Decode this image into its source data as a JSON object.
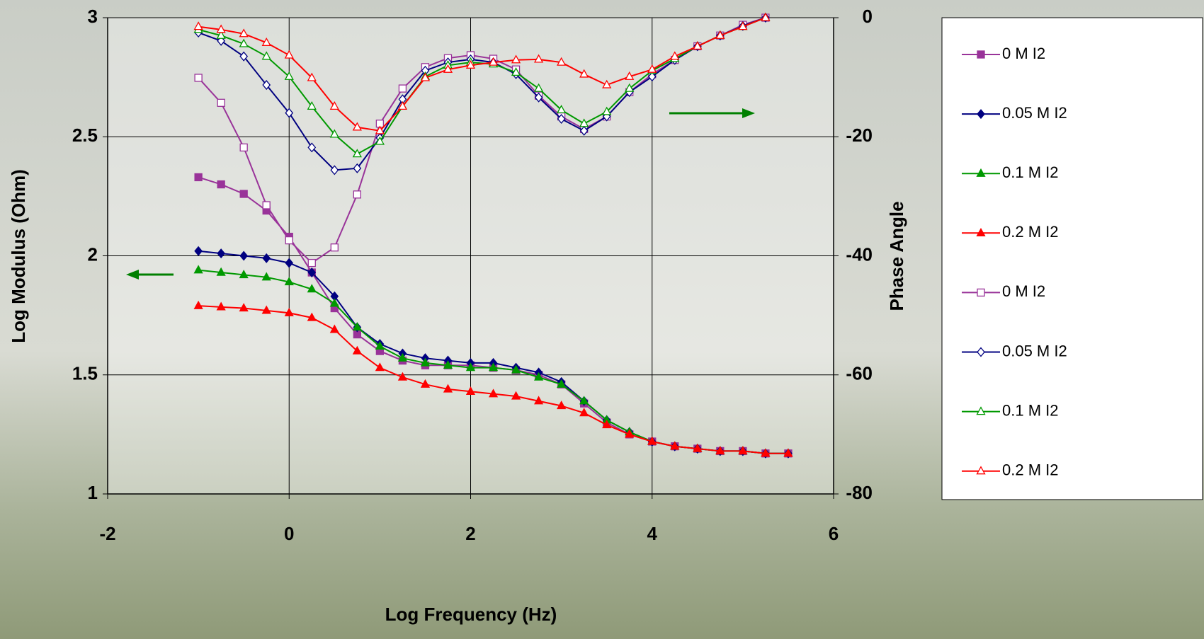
{
  "chart_data": {
    "type": "line",
    "x_label": "Log Frequency (Hz)",
    "y_label": "Log Modulus (Ohm)",
    "y2_label": "Phase Angle",
    "xlim": [
      -2,
      6
    ],
    "xticks": [
      -2,
      0,
      2,
      4,
      6
    ],
    "ylim": [
      1,
      3
    ],
    "yticks": [
      1,
      1.5,
      2,
      2.5,
      3
    ],
    "y2lim": [
      -80,
      0
    ],
    "y2ticks": [
      -80,
      -60,
      -40,
      -20,
      0
    ],
    "grid": true,
    "legend": "right",
    "x": [
      -1,
      -0.75,
      -0.5,
      -0.25,
      0,
      0.25,
      0.5,
      0.75,
      1,
      1.25,
      1.5,
      1.75,
      2,
      2.25,
      2.5,
      2.75,
      3,
      3.25,
      3.5,
      3.75,
      4,
      4.25,
      4.5,
      4.75,
      5,
      5.25,
      5.5
    ],
    "series": [
      {
        "name": "0 M I2",
        "color": "#993399",
        "marker": "square",
        "filled": true,
        "axis": "y",
        "values": [
          2.33,
          2.3,
          2.26,
          2.19,
          2.08,
          1.93,
          1.78,
          1.67,
          1.6,
          1.56,
          1.54,
          1.54,
          1.54,
          1.53,
          1.52,
          1.5,
          1.46,
          1.38,
          1.3,
          1.25,
          1.22,
          1.2,
          1.19,
          1.18,
          1.18,
          1.17,
          1.17
        ]
      },
      {
        "name": "0.05 M I2",
        "color": "#000080",
        "marker": "diamond",
        "filled": true,
        "axis": "y",
        "values": [
          2.02,
          2.01,
          2.0,
          1.99,
          1.97,
          1.93,
          1.83,
          1.7,
          1.63,
          1.59,
          1.57,
          1.56,
          1.55,
          1.55,
          1.53,
          1.51,
          1.47,
          1.39,
          1.31,
          1.26,
          1.22,
          1.2,
          1.19,
          1.18,
          1.18,
          1.17,
          1.17
        ]
      },
      {
        "name": "0.1 M I2",
        "color": "#009900",
        "marker": "triangle",
        "filled": true,
        "axis": "y",
        "values": [
          1.94,
          1.93,
          1.92,
          1.91,
          1.89,
          1.86,
          1.8,
          1.7,
          1.62,
          1.57,
          1.55,
          1.54,
          1.53,
          1.53,
          1.52,
          1.49,
          1.46,
          1.39,
          1.31,
          1.26,
          1.22,
          1.2,
          1.19,
          1.18,
          1.18,
          1.17,
          1.17
        ]
      },
      {
        "name": "0.2 M I2",
        "color": "#ff0000",
        "marker": "triangle",
        "filled": true,
        "axis": "y",
        "values": [
          1.79,
          1.785,
          1.78,
          1.77,
          1.76,
          1.74,
          1.69,
          1.6,
          1.53,
          1.49,
          1.46,
          1.44,
          1.43,
          1.42,
          1.41,
          1.39,
          1.37,
          1.34,
          1.29,
          1.25,
          1.22,
          1.2,
          1.19,
          1.18,
          1.18,
          1.17,
          1.17
        ]
      },
      {
        "name": "0 M I2",
        "color": "#993399",
        "marker": "square",
        "filled": false,
        "axis": "y2",
        "values": [
          -10.1,
          -14.3,
          -21.8,
          -31.5,
          -37.4,
          -41.2,
          -38.6,
          -29.7,
          -17.8,
          -11.9,
          -8.3,
          -6.8,
          -6.3,
          -6.9,
          -8.7,
          -13.1,
          -16.6,
          -18.7,
          -16.6,
          -12.5,
          -9.5,
          -7.1,
          -4.8,
          -3.0,
          -1.2,
          0,
          null
        ]
      },
      {
        "name": "0.05 M I2",
        "color": "#000080",
        "marker": "diamond",
        "filled": false,
        "axis": "y2",
        "values": [
          -2.5,
          -3.9,
          -6.5,
          -11.3,
          -16.0,
          -21.8,
          -25.6,
          -25.3,
          -20.2,
          -13.7,
          -8.9,
          -7.5,
          -7.0,
          -7.5,
          -9.5,
          -13.4,
          -17.0,
          -19.0,
          -16.6,
          -12.5,
          -9.9,
          -7.1,
          -4.8,
          -3.0,
          -1.4,
          0,
          null
        ]
      },
      {
        "name": "0.1 M I2",
        "color": "#009900",
        "marker": "triangle",
        "filled": false,
        "axis": "y2",
        "values": [
          -2.0,
          -3.0,
          -4.4,
          -6.5,
          -9.9,
          -14.9,
          -19.6,
          -22.9,
          -20.8,
          -14.9,
          -9.9,
          -8.0,
          -7.5,
          -7.8,
          -9.2,
          -11.9,
          -15.5,
          -17.8,
          -15.8,
          -11.9,
          -8.9,
          -6.9,
          -4.8,
          -3.0,
          -1.5,
          0,
          null
        ]
      },
      {
        "name": "0.2 M I2",
        "color": "#ff0000",
        "marker": "triangle",
        "filled": false,
        "axis": "y2",
        "values": [
          -1.5,
          -2.0,
          -2.7,
          -4.2,
          -6.3,
          -10.1,
          -14.9,
          -18.4,
          -19.0,
          -14.9,
          -10.1,
          -8.7,
          -8.0,
          -7.5,
          -7.1,
          -7.0,
          -7.5,
          -9.5,
          -11.3,
          -9.9,
          -8.7,
          -6.5,
          -4.8,
          -3.0,
          -1.5,
          0,
          null
        ]
      }
    ]
  }
}
